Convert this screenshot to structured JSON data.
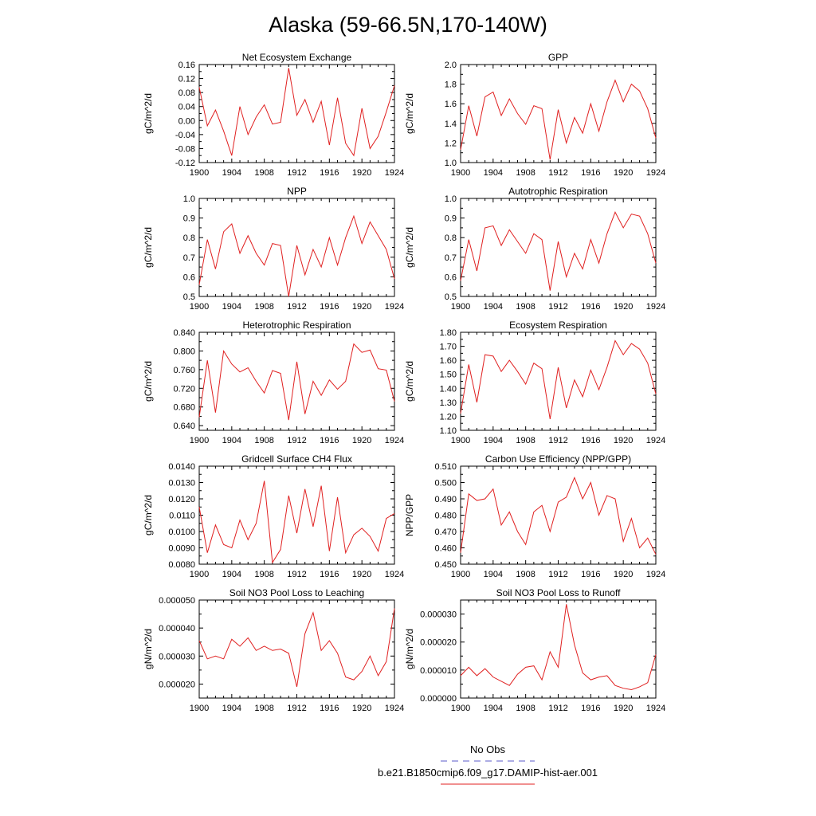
{
  "figure": {
    "title": "Alaska (59-66.5N,170-140W)",
    "legend": [
      {
        "label": "No Obs",
        "color": "#5a5ac8",
        "dash": "dashed"
      },
      {
        "label": "b.e21.B1850cmip6.f09_g17.DAMIP-hist-aer.001",
        "color": "#e02020",
        "dash": "solid"
      }
    ]
  },
  "chart_data": [
    {
      "type": "line",
      "title": "Net Ecosystem Exchange",
      "ylabel": "gC/m^2/d",
      "xlabel": "",
      "xlim": [
        1900,
        1924
      ],
      "ylim": [
        -0.12,
        0.16
      ],
      "x_ticks": [
        1900,
        1904,
        1908,
        1912,
        1916,
        1920,
        1924
      ],
      "y_ticks": [
        "-0.12",
        "-0.08",
        "-0.04",
        "0.00",
        "0.04",
        "0.08",
        "0.12",
        "0.16"
      ],
      "y_tick_values": [
        -0.12,
        -0.08,
        -0.04,
        0.0,
        0.04,
        0.08,
        0.12,
        0.16
      ],
      "x": [
        1900,
        1901,
        1902,
        1903,
        1904,
        1905,
        1906,
        1907,
        1908,
        1909,
        1910,
        1911,
        1912,
        1913,
        1914,
        1915,
        1916,
        1917,
        1918,
        1919,
        1920,
        1921,
        1922,
        1923,
        1924
      ],
      "series": [
        {
          "color": "#e02020",
          "values": [
            0.095,
            -0.015,
            0.03,
            -0.03,
            -0.1,
            0.04,
            -0.04,
            0.01,
            0.045,
            -0.01,
            -0.005,
            0.15,
            0.015,
            0.06,
            -0.005,
            0.055,
            -0.07,
            0.065,
            -0.065,
            -0.1,
            0.035,
            -0.08,
            -0.045,
            0.025,
            0.1
          ]
        }
      ]
    },
    {
      "type": "line",
      "title": "GPP",
      "ylabel": "gC/m^2/d",
      "xlabel": "",
      "xlim": [
        1900,
        1924
      ],
      "ylim": [
        1.0,
        2.0
      ],
      "x_ticks": [
        1900,
        1904,
        1908,
        1912,
        1916,
        1920,
        1924
      ],
      "y_ticks": [
        "1.0",
        "1.2",
        "1.4",
        "1.6",
        "1.8",
        "2.0"
      ],
      "y_tick_values": [
        1.0,
        1.2,
        1.4,
        1.6,
        1.8,
        2.0
      ],
      "x": [
        1900,
        1901,
        1902,
        1903,
        1904,
        1905,
        1906,
        1907,
        1908,
        1909,
        1910,
        1911,
        1912,
        1913,
        1914,
        1915,
        1916,
        1917,
        1918,
        1919,
        1920,
        1921,
        1922,
        1923,
        1924
      ],
      "series": [
        {
          "color": "#e02020",
          "values": [
            1.13,
            1.58,
            1.27,
            1.67,
            1.72,
            1.48,
            1.65,
            1.5,
            1.39,
            1.58,
            1.55,
            1.03,
            1.54,
            1.2,
            1.46,
            1.3,
            1.6,
            1.32,
            1.62,
            1.84,
            1.62,
            1.8,
            1.73,
            1.55,
            1.25
          ]
        }
      ]
    },
    {
      "type": "line",
      "title": "NPP",
      "ylabel": "gC/m^2/d",
      "xlabel": "",
      "xlim": [
        1900,
        1924
      ],
      "ylim": [
        0.5,
        1.0
      ],
      "x_ticks": [
        1900,
        1904,
        1908,
        1912,
        1916,
        1920,
        1924
      ],
      "y_ticks": [
        "0.5",
        "0.6",
        "0.7",
        "0.8",
        "0.9",
        "1.0"
      ],
      "y_tick_values": [
        0.5,
        0.6,
        0.7,
        0.8,
        0.9,
        1.0
      ],
      "x": [
        1900,
        1901,
        1902,
        1903,
        1904,
        1905,
        1906,
        1907,
        1908,
        1909,
        1910,
        1911,
        1912,
        1913,
        1914,
        1915,
        1916,
        1917,
        1918,
        1919,
        1920,
        1921,
        1922,
        1923,
        1924
      ],
      "series": [
        {
          "color": "#e02020",
          "values": [
            0.56,
            0.79,
            0.64,
            0.83,
            0.87,
            0.72,
            0.81,
            0.72,
            0.66,
            0.77,
            0.76,
            0.5,
            0.76,
            0.61,
            0.74,
            0.65,
            0.8,
            0.66,
            0.8,
            0.91,
            0.77,
            0.88,
            0.81,
            0.74,
            0.59
          ]
        }
      ]
    },
    {
      "type": "line",
      "title": "Autotrophic Respiration",
      "ylabel": "gC/m^2/d",
      "xlabel": "",
      "xlim": [
        1900,
        1924
      ],
      "ylim": [
        0.5,
        1.0
      ],
      "x_ticks": [
        1900,
        1904,
        1908,
        1912,
        1916,
        1920,
        1924
      ],
      "y_ticks": [
        "0.5",
        "0.6",
        "0.7",
        "0.8",
        "0.9",
        "1.0"
      ],
      "y_tick_values": [
        0.5,
        0.6,
        0.7,
        0.8,
        0.9,
        1.0
      ],
      "x": [
        1900,
        1901,
        1902,
        1903,
        1904,
        1905,
        1906,
        1907,
        1908,
        1909,
        1910,
        1911,
        1912,
        1913,
        1914,
        1915,
        1916,
        1917,
        1918,
        1919,
        1920,
        1921,
        1922,
        1923,
        1924
      ],
      "series": [
        {
          "color": "#e02020",
          "values": [
            0.58,
            0.79,
            0.63,
            0.85,
            0.86,
            0.76,
            0.84,
            0.78,
            0.72,
            0.82,
            0.79,
            0.53,
            0.78,
            0.6,
            0.72,
            0.64,
            0.79,
            0.67,
            0.82,
            0.93,
            0.85,
            0.92,
            0.91,
            0.82,
            0.67
          ]
        }
      ]
    },
    {
      "type": "line",
      "title": "Heterotrophic Respiration",
      "ylabel": "gC/m^2/d",
      "xlabel": "",
      "xlim": [
        1900,
        1924
      ],
      "ylim": [
        0.63,
        0.84
      ],
      "x_ticks": [
        1900,
        1904,
        1908,
        1912,
        1916,
        1920,
        1924
      ],
      "y_ticks": [
        "0.640",
        "0.680",
        "0.720",
        "0.760",
        "0.800",
        "0.840"
      ],
      "y_tick_values": [
        0.64,
        0.68,
        0.72,
        0.76,
        0.8,
        0.84
      ],
      "x": [
        1900,
        1901,
        1902,
        1903,
        1904,
        1905,
        1906,
        1907,
        1908,
        1909,
        1910,
        1911,
        1912,
        1913,
        1914,
        1915,
        1916,
        1917,
        1918,
        1919,
        1920,
        1921,
        1922,
        1923,
        1924
      ],
      "series": [
        {
          "color": "#e02020",
          "values": [
            0.658,
            0.78,
            0.668,
            0.8,
            0.772,
            0.755,
            0.764,
            0.735,
            0.71,
            0.758,
            0.752,
            0.652,
            0.777,
            0.665,
            0.735,
            0.705,
            0.738,
            0.718,
            0.735,
            0.815,
            0.797,
            0.802,
            0.762,
            0.759,
            0.692
          ]
        }
      ]
    },
    {
      "type": "line",
      "title": "Ecosystem Respiration",
      "ylabel": "gC/m^2/d",
      "xlabel": "",
      "xlim": [
        1900,
        1924
      ],
      "ylim": [
        1.1,
        1.8
      ],
      "x_ticks": [
        1900,
        1904,
        1908,
        1912,
        1916,
        1920,
        1924
      ],
      "y_ticks": [
        "1.10",
        "1.20",
        "1.30",
        "1.40",
        "1.50",
        "1.60",
        "1.70",
        "1.80"
      ],
      "y_tick_values": [
        1.1,
        1.2,
        1.3,
        1.4,
        1.5,
        1.6,
        1.7,
        1.8
      ],
      "x": [
        1900,
        1901,
        1902,
        1903,
        1904,
        1905,
        1906,
        1907,
        1908,
        1909,
        1910,
        1911,
        1912,
        1913,
        1914,
        1915,
        1916,
        1917,
        1918,
        1919,
        1920,
        1921,
        1922,
        1923,
        1924
      ],
      "series": [
        {
          "color": "#e02020",
          "values": [
            1.22,
            1.57,
            1.3,
            1.64,
            1.63,
            1.52,
            1.6,
            1.52,
            1.43,
            1.58,
            1.54,
            1.18,
            1.55,
            1.26,
            1.46,
            1.34,
            1.53,
            1.39,
            1.55,
            1.74,
            1.64,
            1.72,
            1.68,
            1.58,
            1.36
          ]
        }
      ]
    },
    {
      "type": "line",
      "title": "Gridcell Surface CH4 Flux",
      "ylabel": "gC/m^2/d",
      "xlabel": "",
      "xlim": [
        1900,
        1924
      ],
      "ylim": [
        0.008,
        0.014
      ],
      "x_ticks": [
        1900,
        1904,
        1908,
        1912,
        1916,
        1920,
        1924
      ],
      "y_ticks": [
        "0.0080",
        "0.0090",
        "0.0100",
        "0.0110",
        "0.0120",
        "0.0130",
        "0.0140"
      ],
      "y_tick_values": [
        0.008,
        0.009,
        0.01,
        0.011,
        0.012,
        0.013,
        0.014
      ],
      "x": [
        1900,
        1901,
        1902,
        1903,
        1904,
        1905,
        1906,
        1907,
        1908,
        1909,
        1910,
        1911,
        1912,
        1913,
        1914,
        1915,
        1916,
        1917,
        1918,
        1919,
        1920,
        1921,
        1922,
        1923,
        1924
      ],
      "series": [
        {
          "color": "#e02020",
          "values": [
            0.0115,
            0.0087,
            0.0104,
            0.0092,
            0.009,
            0.0107,
            0.0095,
            0.0105,
            0.0131,
            0.0081,
            0.0089,
            0.0122,
            0.0099,
            0.0126,
            0.0103,
            0.0128,
            0.0088,
            0.0121,
            0.0087,
            0.0098,
            0.0102,
            0.0097,
            0.0088,
            0.0108,
            0.0111
          ]
        }
      ]
    },
    {
      "type": "line",
      "title": "Carbon Use Efficiency (NPP/GPP)",
      "ylabel": "NPP/GPP",
      "xlabel": "",
      "xlim": [
        1900,
        1924
      ],
      "ylim": [
        0.45,
        0.51
      ],
      "x_ticks": [
        1900,
        1904,
        1908,
        1912,
        1916,
        1920,
        1924
      ],
      "y_ticks": [
        "0.450",
        "0.460",
        "0.470",
        "0.480",
        "0.490",
        "0.500",
        "0.510"
      ],
      "y_tick_values": [
        0.45,
        0.46,
        0.47,
        0.48,
        0.49,
        0.5,
        0.51
      ],
      "x": [
        1900,
        1901,
        1902,
        1903,
        1904,
        1905,
        1906,
        1907,
        1908,
        1909,
        1910,
        1911,
        1912,
        1913,
        1914,
        1915,
        1916,
        1917,
        1918,
        1919,
        1920,
        1921,
        1922,
        1923,
        1924
      ],
      "series": [
        {
          "color": "#e02020",
          "values": [
            0.457,
            0.493,
            0.489,
            0.49,
            0.496,
            0.474,
            0.482,
            0.47,
            0.462,
            0.482,
            0.486,
            0.47,
            0.488,
            0.491,
            0.503,
            0.49,
            0.5,
            0.48,
            0.492,
            0.49,
            0.464,
            0.478,
            0.46,
            0.466,
            0.456
          ]
        }
      ]
    },
    {
      "type": "line",
      "title": "Soil NO3 Pool Loss to Leaching",
      "ylabel": "gN/m^2/d",
      "xlabel": "",
      "xlim": [
        1900,
        1924
      ],
      "ylim": [
        1.5e-05,
        5e-05
      ],
      "x_ticks": [
        1900,
        1904,
        1908,
        1912,
        1916,
        1920,
        1924
      ],
      "y_ticks": [
        "0.000020",
        "0.000030",
        "0.000040",
        "0.000050"
      ],
      "y_tick_values": [
        2e-05,
        3e-05,
        4e-05,
        5e-05
      ],
      "x": [
        1900,
        1901,
        1902,
        1903,
        1904,
        1905,
        1906,
        1907,
        1908,
        1909,
        1910,
        1911,
        1912,
        1913,
        1914,
        1915,
        1916,
        1917,
        1918,
        1919,
        1920,
        1921,
        1922,
        1923,
        1924
      ],
      "series": [
        {
          "color": "#e02020",
          "values": [
            3.55e-05,
            2.9e-05,
            3e-05,
            2.9e-05,
            3.6e-05,
            3.35e-05,
            3.65e-05,
            3.2e-05,
            3.35e-05,
            3.2e-05,
            3.25e-05,
            3.1e-05,
            1.9e-05,
            3.8e-05,
            4.55e-05,
            3.2e-05,
            3.55e-05,
            3.1e-05,
            2.25e-05,
            2.15e-05,
            2.45e-05,
            3e-05,
            2.3e-05,
            2.8e-05,
            4.7e-05
          ]
        }
      ]
    },
    {
      "type": "line",
      "title": "Soil NO3 Pool Loss to Runoff",
      "ylabel": "gN/m^2/d",
      "xlabel": "",
      "xlim": [
        1900,
        1924
      ],
      "ylim": [
        0,
        3.5e-05
      ],
      "x_ticks": [
        1900,
        1904,
        1908,
        1912,
        1916,
        1920,
        1924
      ],
      "y_ticks": [
        "0.000000",
        "0.000010",
        "0.000020",
        "0.000030"
      ],
      "y_tick_values": [
        0,
        1e-05,
        2e-05,
        3e-05
      ],
      "x": [
        1900,
        1901,
        1902,
        1903,
        1904,
        1905,
        1906,
        1907,
        1908,
        1909,
        1910,
        1911,
        1912,
        1913,
        1914,
        1915,
        1916,
        1917,
        1918,
        1919,
        1920,
        1921,
        1922,
        1923,
        1924
      ],
      "series": [
        {
          "color": "#e02020",
          "values": [
            8e-06,
            1.1e-05,
            8e-06,
            1.05e-05,
            7.5e-06,
            6e-06,
            4.5e-06,
            8.5e-06,
            1.1e-05,
            1.15e-05,
            6.5e-06,
            1.65e-05,
            1.1e-05,
            3.35e-05,
            1.9e-05,
            9e-06,
            6.5e-06,
            7.5e-06,
            8e-06,
            4.5e-06,
            3.5e-06,
            3e-06,
            4e-06,
            5.5e-06,
            1.55e-05
          ]
        }
      ]
    }
  ]
}
